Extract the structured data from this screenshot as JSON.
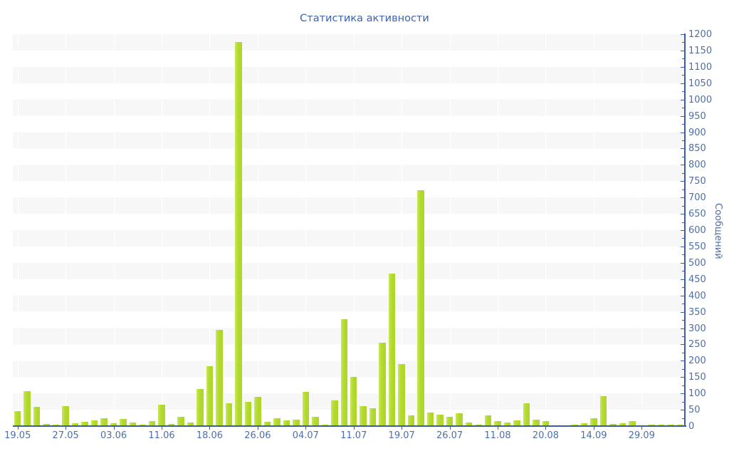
{
  "title": "Статистика активности",
  "colors": {
    "title_text": "#3a63ad",
    "axis_line": "#3e5ba6",
    "tick_label": "#4d6fa9",
    "bar_fill": "#b2da2e",
    "band_gray": "#f7f7f7",
    "background": "#ffffff"
  },
  "chart_data": {
    "type": "bar",
    "title": "Статистика активности",
    "xlabel": "",
    "ylabel": "Сообщений",
    "ylim": [
      0,
      1200
    ],
    "y_tick_step": 50,
    "y_minor_tick_step": 25,
    "grid": "horizontal 50-unit alternating white/gray bands, faint white vertical lines at x ticks",
    "legend_position": "none",
    "x_axis_note": "one bar per active day; axis labeled on every 5th bar",
    "x_tick_every": 5,
    "x_tick_labels": [
      "19.05",
      "27.05",
      "03.06",
      "11.06",
      "18.06",
      "26.06",
      "04.07",
      "11.07",
      "19.07",
      "26.07",
      "11.08",
      "20.08",
      "14.09",
      "29.09"
    ],
    "values": [
      45,
      106,
      59,
      7,
      5,
      62,
      9,
      13,
      17,
      24,
      9,
      21,
      11,
      5,
      15,
      66,
      7,
      28,
      10,
      113,
      183,
      295,
      70,
      1175,
      74,
      89,
      14,
      25,
      18,
      20,
      105,
      28,
      5,
      79,
      328,
      150,
      61,
      55,
      255,
      468,
      190,
      33,
      722,
      42,
      34,
      28,
      40,
      12,
      5,
      32,
      16,
      10,
      18,
      70,
      20,
      15,
      3,
      2,
      5,
      8,
      25,
      92,
      7,
      8,
      16,
      2,
      4,
      4,
      4,
      4
    ]
  }
}
